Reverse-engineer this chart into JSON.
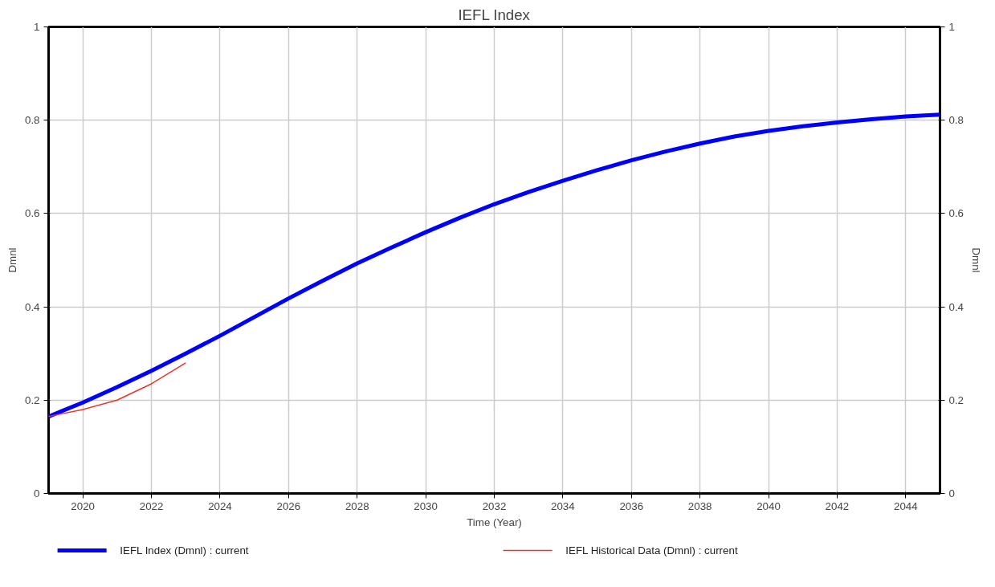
{
  "chart_data": {
    "type": "line",
    "title": "IEFL Index",
    "xlabel": "Time (Year)",
    "ylabel": "Dmnl",
    "y2label": "Dmnl",
    "xlim": [
      2019,
      2045
    ],
    "xticks": [
      2020,
      2022,
      2024,
      2026,
      2028,
      2030,
      2032,
      2034,
      2036,
      2038,
      2040,
      2042,
      2044
    ],
    "ylim": [
      0,
      1
    ],
    "yticks": [
      0,
      0.2,
      0.4,
      0.6,
      0.8,
      1
    ],
    "y2lim": [
      0,
      1
    ],
    "y2ticks": [
      0,
      0.2,
      0.4,
      0.6,
      0.8,
      1
    ],
    "grid": true,
    "legend": "bottom",
    "line_style": "solid",
    "series": [
      {
        "name": "IEFL Index (Dmnl) : current",
        "color": "#0000ff",
        "x": [
          2019,
          2020,
          2021,
          2022,
          2023,
          2024,
          2025,
          2026,
          2027,
          2028,
          2029,
          2030,
          2031,
          2032,
          2033,
          2034,
          2035,
          2036,
          2037,
          2038,
          2039,
          2040,
          2041,
          2042,
          2043,
          2044,
          2045
        ],
        "values": [
          0.165,
          0.195,
          0.228,
          0.263,
          0.3,
          0.338,
          0.378,
          0.418,
          0.456,
          0.493,
          0.527,
          0.56,
          0.591,
          0.62,
          0.646,
          0.67,
          0.693,
          0.714,
          0.733,
          0.75,
          0.765,
          0.777,
          0.787,
          0.795,
          0.802,
          0.808,
          0.812
        ]
      },
      {
        "name": "IEFL Historical Data (Dmnl) : current",
        "color": "#e8352a",
        "x": [
          2019,
          2020,
          2021,
          2022,
          2023
        ],
        "values": [
          0.165,
          0.18,
          0.2,
          0.235,
          0.28
        ]
      }
    ]
  }
}
